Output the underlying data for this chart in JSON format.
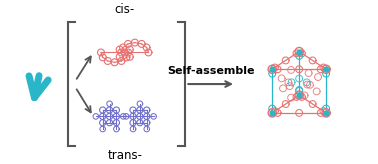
{
  "background_color": "#ffffff",
  "cis_label": "cis-",
  "trans_label": "trans-",
  "self_assemble_label": "Self-assemble",
  "arrow_color": "#555555",
  "bracket_color": "#555555",
  "terpyridine_color": "#29b6c8",
  "cis_mol_color": "#e87070",
  "trans_mol_color": "#7070cc",
  "prism_color1": "#e87070",
  "prism_color2": "#29b6c8",
  "figsize": [
    3.78,
    1.64
  ],
  "dpi": 100,
  "label_fontsize": 8.5,
  "arrow_fontsize": 8.0
}
